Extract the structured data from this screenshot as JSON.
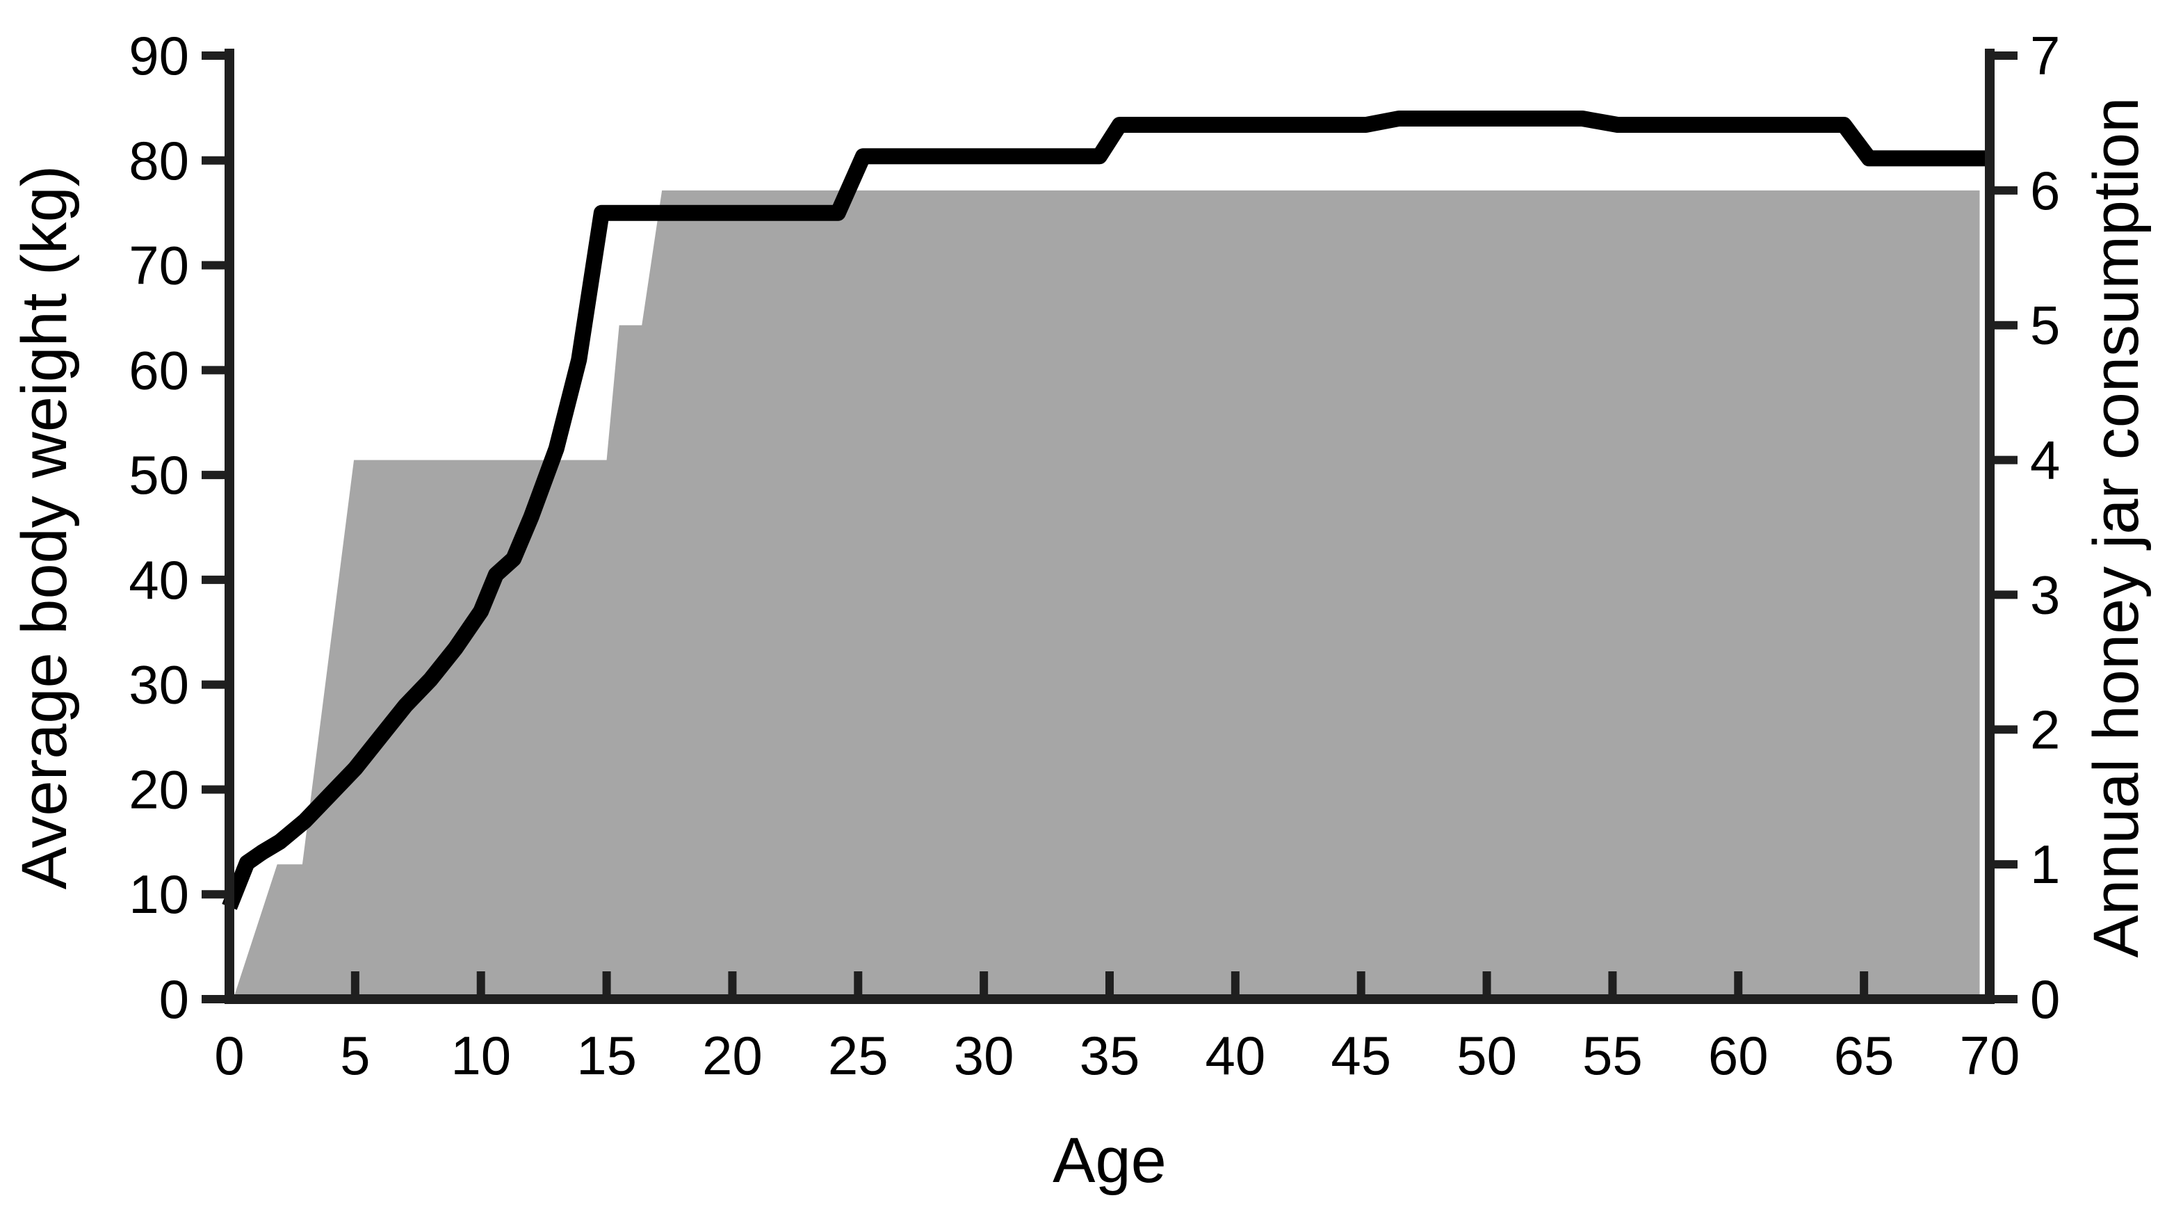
{
  "chart_data": {
    "type": "line",
    "title": "",
    "xlabel": "Age",
    "ylabel_left": "Average body weight (kg)",
    "ylabel_right": "Annual honey jar consumption",
    "xlim": [
      0,
      70
    ],
    "x_ticks": [
      0,
      5,
      10,
      15,
      20,
      25,
      30,
      35,
      40,
      45,
      50,
      55,
      60,
      65,
      70
    ],
    "ylim_left": [
      0,
      90
    ],
    "y_ticks_left": [
      0,
      10,
      20,
      30,
      40,
      50,
      60,
      70,
      80,
      90
    ],
    "ylim_right": [
      0,
      7
    ],
    "y_ticks_right": [
      0,
      1,
      2,
      3,
      4,
      5,
      6,
      7
    ],
    "grid": false,
    "legend": "none",
    "colors": {
      "weight_line": "#000000",
      "honey_area": "#a6a6a6",
      "axis": "#1f1f1f",
      "text": "#000000",
      "background": "#ffffff"
    },
    "series": [
      {
        "name": "Average body weight (kg)",
        "type": "line",
        "axis": "left",
        "points": [
          [
            0,
            8.8
          ],
          [
            0.7,
            13
          ],
          [
            1.3,
            14
          ],
          [
            2,
            15
          ],
          [
            3,
            17
          ],
          [
            4,
            19.5
          ],
          [
            5,
            22
          ],
          [
            6,
            25
          ],
          [
            7,
            28
          ],
          [
            8,
            30.5
          ],
          [
            9,
            33.5
          ],
          [
            10,
            37
          ],
          [
            10.6,
            40.5
          ],
          [
            11.3,
            42
          ],
          [
            12,
            46
          ],
          [
            13,
            52.5
          ],
          [
            13.9,
            61
          ],
          [
            14.8,
            75
          ],
          [
            24.2,
            75
          ],
          [
            25.2,
            80.4
          ],
          [
            34.6,
            80.4
          ],
          [
            35.4,
            83.4
          ],
          [
            45.2,
            83.4
          ],
          [
            46.5,
            84
          ],
          [
            53.8,
            84
          ],
          [
            55.2,
            83.4
          ],
          [
            64.2,
            83.4
          ],
          [
            65.2,
            80.2
          ],
          [
            70,
            80.2
          ]
        ]
      },
      {
        "name": "Annual honey jar consumption",
        "type": "area",
        "axis": "right",
        "points": [
          [
            0.15,
            0
          ],
          [
            1.9,
            1
          ],
          [
            2.9,
            1
          ],
          [
            4.95,
            4
          ],
          [
            15.0,
            4
          ],
          [
            15.5,
            5
          ],
          [
            16.4,
            5
          ],
          [
            17.2,
            6
          ],
          [
            69.6,
            6
          ],
          [
            69.6,
            0
          ]
        ]
      }
    ],
    "layout": {
      "plot_left": 330,
      "plot_right": 2862,
      "plot_top": 80,
      "plot_bottom": 1437,
      "axis_stroke": 14,
      "tick_stroke": 12,
      "tick_len": 40,
      "line_stroke": 23
    }
  }
}
